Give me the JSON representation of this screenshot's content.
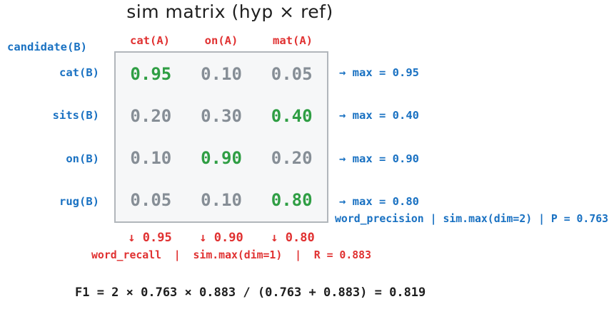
{
  "title": "sim matrix (hyp × ref)",
  "candidate_label": "candidate(B)",
  "reference_columns": [
    "cat(A)",
    "on(A)",
    "mat(A)"
  ],
  "matrix": {
    "rows": [
      {
        "label": "cat(B)",
        "cells": [
          {
            "value": "0.95",
            "tone": "green"
          },
          {
            "value": "0.10",
            "tone": "gray"
          },
          {
            "value": "0.05",
            "tone": "gray"
          }
        ],
        "max_note": "→ max = 0.95"
      },
      {
        "label": "sits(B)",
        "cells": [
          {
            "value": "0.20",
            "tone": "gray"
          },
          {
            "value": "0.30",
            "tone": "gray"
          },
          {
            "value": "0.40",
            "tone": "green"
          }
        ],
        "max_note": "→ max = 0.40"
      },
      {
        "label": "on(B)",
        "cells": [
          {
            "value": "0.10",
            "tone": "gray"
          },
          {
            "value": "0.90",
            "tone": "green"
          },
          {
            "value": "0.20",
            "tone": "gray"
          }
        ],
        "max_note": "→ max = 0.90"
      },
      {
        "label": "rug(B)",
        "cells": [
          {
            "value": "0.05",
            "tone": "gray"
          },
          {
            "value": "0.10",
            "tone": "gray"
          },
          {
            "value": "0.80",
            "tone": "green"
          }
        ],
        "max_note": "→ max = 0.80"
      }
    ],
    "column_max": [
      "↓ 0.95",
      "↓ 0.90",
      "↓ 0.80"
    ]
  },
  "precision_note": "word_precision | sim.max(dim=2) | P = 0.763",
  "recall_note": "word_recall  |  sim.max(dim=1)  |  R = 0.883",
  "f1_formula": "F1 = 2 × 0.763 × 0.883 / (0.763 + 0.883) = 0.819",
  "colors": {
    "blue": "#1971c2",
    "red": "#e03131",
    "green": "#2f9e44",
    "gray": "#868e96",
    "black": "#1e1e1e",
    "matrix_fill": "#f6f7f8",
    "matrix_border": "#b1b6bb"
  }
}
